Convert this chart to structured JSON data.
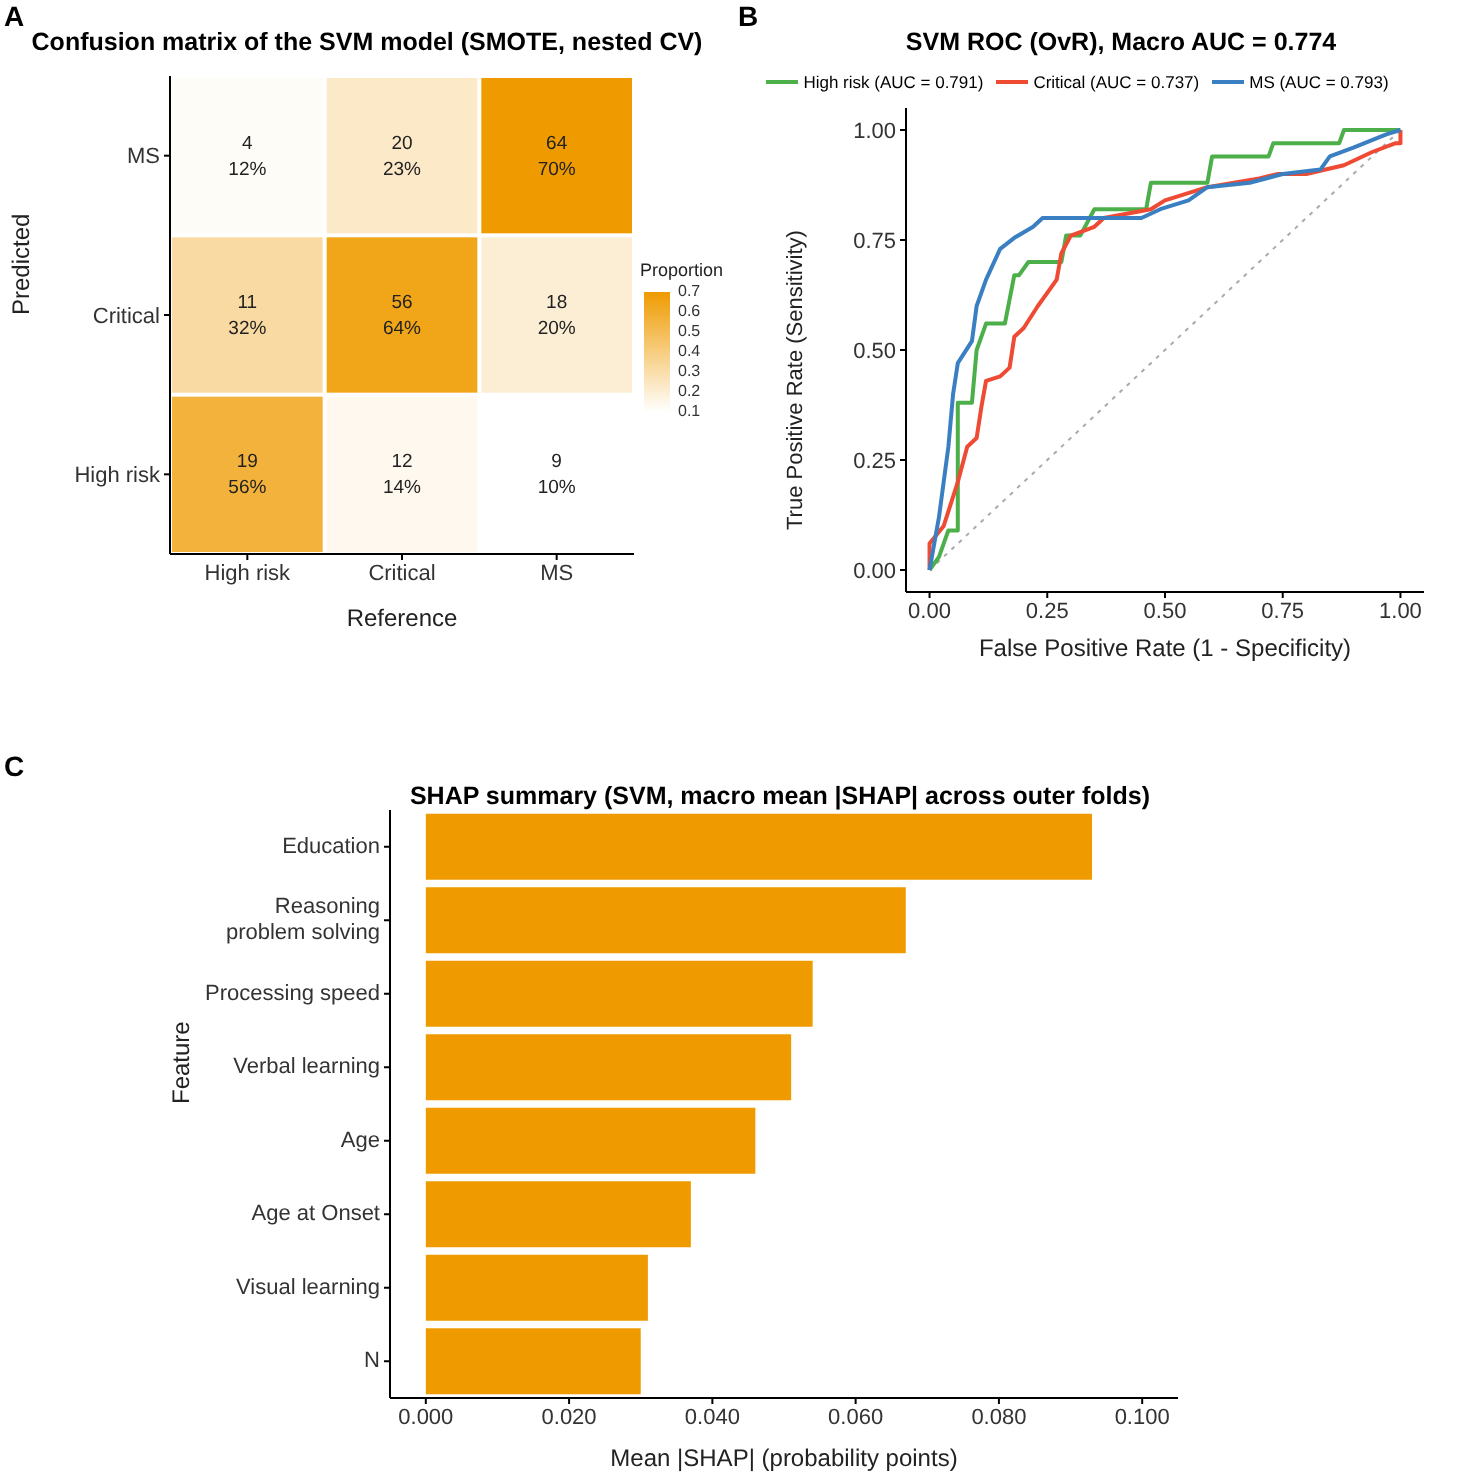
{
  "chart_data": [
    {
      "type": "heatmap",
      "title": "Confusion matrix of the SVM model (SMOTE, nested CV)",
      "xlabel": "Reference",
      "ylabel": "Predicted",
      "legend_title": "Proportion",
      "annotations": [
        "A"
      ],
      "color": "#ef9b00",
      "categories": [
        "High risk",
        "Critical",
        "MS"
      ],
      "y_categories": [
        "MS",
        "Critical",
        "High risk"
      ],
      "cells": [
        [
          0.12,
          0.23,
          0.7
        ],
        [
          0.32,
          0.64,
          0.2
        ],
        [
          0.56,
          0.14,
          0.1
        ]
      ],
      "cell_labels": [
        [
          "4\n12%",
          "20\n23%",
          "64\n70%"
        ],
        [
          "11\n32%",
          "56\n64%",
          "18\n20%"
        ],
        [
          "19\n56%",
          "12\n14%",
          "9\n10%"
        ]
      ],
      "clim": [
        0.1,
        0.7
      ],
      "cticks": [
        0.1,
        0.2,
        0.3,
        0.4,
        0.5,
        0.6,
        0.7
      ]
    },
    {
      "type": "line",
      "title": "SVM ROC (OvR), Macro AUC = 0.774",
      "xlabel": "False Positive Rate (1 - Specificity)",
      "ylabel": "True Positive Rate (Sensitivity)",
      "annotations": [
        "B"
      ],
      "legend": "top",
      "marker": "none",
      "xlim": [
        -0.05,
        1.05
      ],
      "ylim": [
        -0.05,
        1.05
      ],
      "xticks": [
        {
          "value": 0,
          "label": "0.00"
        },
        {
          "value": 0.25,
          "label": "0.25"
        },
        {
          "value": 0.5,
          "label": "0.50"
        },
        {
          "value": 0.75,
          "label": "0.75"
        },
        {
          "value": 1,
          "label": "1.00"
        }
      ],
      "yticks": [
        {
          "value": 0,
          "label": "0.00"
        },
        {
          "value": 0.25,
          "label": "0.25"
        },
        {
          "value": 0.5,
          "label": "0.50"
        },
        {
          "value": 0.75,
          "label": "0.75"
        },
        {
          "value": 1,
          "label": "1.00"
        }
      ],
      "series": [
        {
          "type": "line",
          "color": "#aaaaaa",
          "line_style": "dotted",
          "x": [
            0,
            1
          ],
          "values": [
            0,
            1
          ]
        },
        {
          "name": "High risk (AUC = 0.791)",
          "color": "#4daf4a",
          "line_style": "solid",
          "x": [
            0,
            0.02,
            0.04,
            0.06,
            0.06,
            0.09,
            0.1,
            0.12,
            0.16,
            0.18,
            0.19,
            0.21,
            0.28,
            0.29,
            0.32,
            0.35,
            0.46,
            0.47,
            0.59,
            0.6,
            0.72,
            0.73,
            0.87,
            0.88,
            1
          ],
          "values": [
            0,
            0.03,
            0.09,
            0.09,
            0.38,
            0.38,
            0.5,
            0.56,
            0.56,
            0.67,
            0.67,
            0.7,
            0.7,
            0.76,
            0.76,
            0.82,
            0.82,
            0.88,
            0.88,
            0.94,
            0.94,
            0.97,
            0.97,
            1,
            1
          ]
        },
        {
          "name": "Critical (AUC = 0.737)",
          "color": "#ef4a33",
          "line_style": "solid",
          "x": [
            0,
            0,
            0.03,
            0.06,
            0.08,
            0.1,
            0.11,
            0.12,
            0.15,
            0.17,
            0.18,
            0.2,
            0.23,
            0.25,
            0.27,
            0.28,
            0.3,
            0.35,
            0.37,
            0.47,
            0.5,
            0.59,
            0.7,
            0.74,
            0.8,
            0.88,
            0.94,
            0.99,
            1,
            1
          ],
          "values": [
            0,
            0.06,
            0.1,
            0.2,
            0.28,
            0.3,
            0.37,
            0.43,
            0.44,
            0.46,
            0.53,
            0.55,
            0.6,
            0.63,
            0.66,
            0.72,
            0.76,
            0.78,
            0.8,
            0.82,
            0.84,
            0.87,
            0.89,
            0.9,
            0.9,
            0.92,
            0.95,
            0.97,
            0.97,
            1
          ]
        },
        {
          "name": "MS (AUC = 0.793)",
          "color": "#3a7fc1",
          "line_style": "solid",
          "x": [
            0,
            0.02,
            0.04,
            0.05,
            0.06,
            0.09,
            0.1,
            0.12,
            0.15,
            0.18,
            0.22,
            0.24,
            0.45,
            0.49,
            0.55,
            0.59,
            0.68,
            0.75,
            0.83,
            0.85,
            0.9,
            0.97,
            1
          ],
          "values": [
            0,
            0.12,
            0.28,
            0.4,
            0.47,
            0.52,
            0.6,
            0.66,
            0.73,
            0.755,
            0.78,
            0.8,
            0.8,
            0.82,
            0.84,
            0.87,
            0.88,
            0.9,
            0.91,
            0.94,
            0.96,
            0.99,
            1
          ]
        }
      ]
    },
    {
      "type": "bar",
      "orientation": "horizontal",
      "title": "SHAP summary (SVM, macro mean |SHAP| across outer folds)",
      "xlabel": "Mean |SHAP| (probability points)",
      "ylabel": "Feature",
      "annotations": [
        "C"
      ],
      "color": "#ef9b00",
      "categories": [
        "Education",
        "Reasoning problem solving",
        "Processing speed",
        "Verbal learning",
        "Age",
        "Age at Onset",
        "Visual learning",
        "N"
      ],
      "values": [
        0.093,
        0.067,
        0.054,
        0.051,
        0.046,
        0.037,
        0.031,
        0.03
      ],
      "xlim": [
        -0.005,
        0.105
      ],
      "xticks": [
        {
          "value": 0,
          "label": "0.000"
        },
        {
          "value": 0.02,
          "label": "0.020"
        },
        {
          "value": 0.04,
          "label": "0.040"
        },
        {
          "value": 0.06,
          "label": "0.060"
        },
        {
          "value": 0.08,
          "label": "0.080"
        },
        {
          "value": 0.1,
          "label": "0.100"
        }
      ]
    }
  ]
}
